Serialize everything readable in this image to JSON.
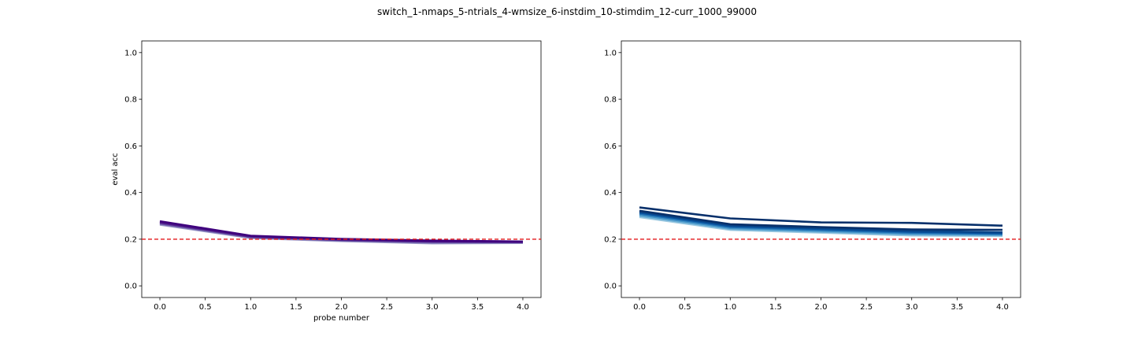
{
  "figure": {
    "suptitle": "switch_1-nmaps_5-ntrials_4-wmsize_6-instdim_10-stimdim_12-curr_1000_99000"
  },
  "chart_data": [
    {
      "type": "line",
      "title": "",
      "xlabel": "probe number",
      "ylabel": "eval acc",
      "xlim": [
        -0.2,
        4.2
      ],
      "ylim": [
        -0.05,
        1.05
      ],
      "xticks": [
        "0.0",
        "0.5",
        "1.0",
        "1.5",
        "2.0",
        "2.5",
        "3.0",
        "3.5",
        "4.0"
      ],
      "yticks": [
        "0.0",
        "0.2",
        "0.4",
        "0.6",
        "0.8",
        "1.0"
      ],
      "reference_line": {
        "y": 0.2,
        "color": "#e41a1c",
        "style": "dashed"
      },
      "x": [
        0,
        1,
        2,
        3,
        4
      ],
      "series": [
        {
          "values": [
            0.262,
            0.205,
            0.192,
            0.182,
            0.184
          ],
          "color": "#9e9ac8"
        },
        {
          "values": [
            0.265,
            0.207,
            0.194,
            0.185,
            0.186
          ],
          "color": "#807dba"
        },
        {
          "values": [
            0.268,
            0.209,
            0.196,
            0.188,
            0.187
          ],
          "color": "#6a51a3"
        },
        {
          "values": [
            0.271,
            0.211,
            0.197,
            0.19,
            0.188
          ],
          "color": "#54278f"
        },
        {
          "values": [
            0.274,
            0.213,
            0.199,
            0.192,
            0.189
          ],
          "color": "#4a1486"
        },
        {
          "values": [
            0.277,
            0.215,
            0.201,
            0.194,
            0.19
          ],
          "color": "#3f007d"
        }
      ]
    },
    {
      "type": "line",
      "title": "",
      "xlabel": "",
      "ylabel": "",
      "xlim": [
        -0.2,
        4.2
      ],
      "ylim": [
        -0.05,
        1.05
      ],
      "xticks": [
        "0.0",
        "0.5",
        "1.0",
        "1.5",
        "2.0",
        "2.5",
        "3.0",
        "3.5",
        "4.0"
      ],
      "yticks": [
        "0.0",
        "0.2",
        "0.4",
        "0.6",
        "0.8",
        "1.0"
      ],
      "reference_line": {
        "y": 0.2,
        "color": "#e41a1c",
        "style": "dashed"
      },
      "x": [
        0,
        1,
        2,
        3,
        4
      ],
      "series": [
        {
          "values": [
            0.295,
            0.24,
            0.228,
            0.216,
            0.214
          ],
          "color": "#9ecae1"
        },
        {
          "values": [
            0.3,
            0.244,
            0.232,
            0.22,
            0.217
          ],
          "color": "#6baed6"
        },
        {
          "values": [
            0.305,
            0.248,
            0.236,
            0.224,
            0.22
          ],
          "color": "#4292c6"
        },
        {
          "values": [
            0.31,
            0.252,
            0.24,
            0.228,
            0.223
          ],
          "color": "#2171b5"
        },
        {
          "values": [
            0.314,
            0.256,
            0.244,
            0.232,
            0.226
          ],
          "color": "#08519c"
        },
        {
          "values": [
            0.318,
            0.26,
            0.248,
            0.236,
            0.229
          ],
          "color": "#08458a"
        },
        {
          "values": [
            0.322,
            0.264,
            0.252,
            0.242,
            0.24
          ],
          "color": "#08306b"
        },
        {
          "values": [
            0.336,
            0.289,
            0.272,
            0.27,
            0.258
          ],
          "color": "#08306b"
        }
      ]
    }
  ]
}
